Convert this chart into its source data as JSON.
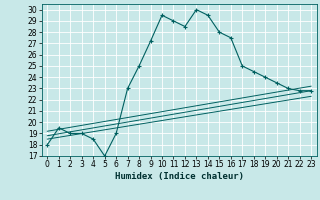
{
  "title": "",
  "xlabel": "Humidex (Indice chaleur)",
  "bg_color": "#c8e8e8",
  "grid_color": "#ffffff",
  "line_color": "#006060",
  "xlim": [
    -0.5,
    23.5
  ],
  "ylim": [
    17,
    30.5
  ],
  "xticks": [
    0,
    1,
    2,
    3,
    4,
    5,
    6,
    7,
    8,
    9,
    10,
    11,
    12,
    13,
    14,
    15,
    16,
    17,
    18,
    19,
    20,
    21,
    22,
    23
  ],
  "yticks": [
    17,
    18,
    19,
    20,
    21,
    22,
    23,
    24,
    25,
    26,
    27,
    28,
    29,
    30
  ],
  "main_x": [
    0,
    1,
    2,
    3,
    4,
    5,
    6,
    7,
    8,
    9,
    10,
    11,
    12,
    13,
    14,
    15,
    16,
    17,
    18,
    19,
    20,
    21,
    22,
    23
  ],
  "main_y": [
    18.0,
    19.5,
    19.0,
    19.0,
    18.5,
    17.0,
    19.0,
    23.0,
    25.0,
    27.2,
    29.5,
    29.0,
    28.5,
    30.0,
    29.5,
    28.0,
    27.5,
    25.0,
    24.5,
    24.0,
    23.5,
    23.0,
    22.8,
    22.8
  ],
  "line1_x": [
    0,
    23
  ],
  "line1_y": [
    18.5,
    22.3
  ],
  "line2_x": [
    0,
    23
  ],
  "line2_y": [
    18.8,
    22.8
  ],
  "line3_x": [
    0,
    23
  ],
  "line3_y": [
    19.2,
    23.2
  ],
  "tick_fontsize": 5.5,
  "xlabel_fontsize": 6.5
}
